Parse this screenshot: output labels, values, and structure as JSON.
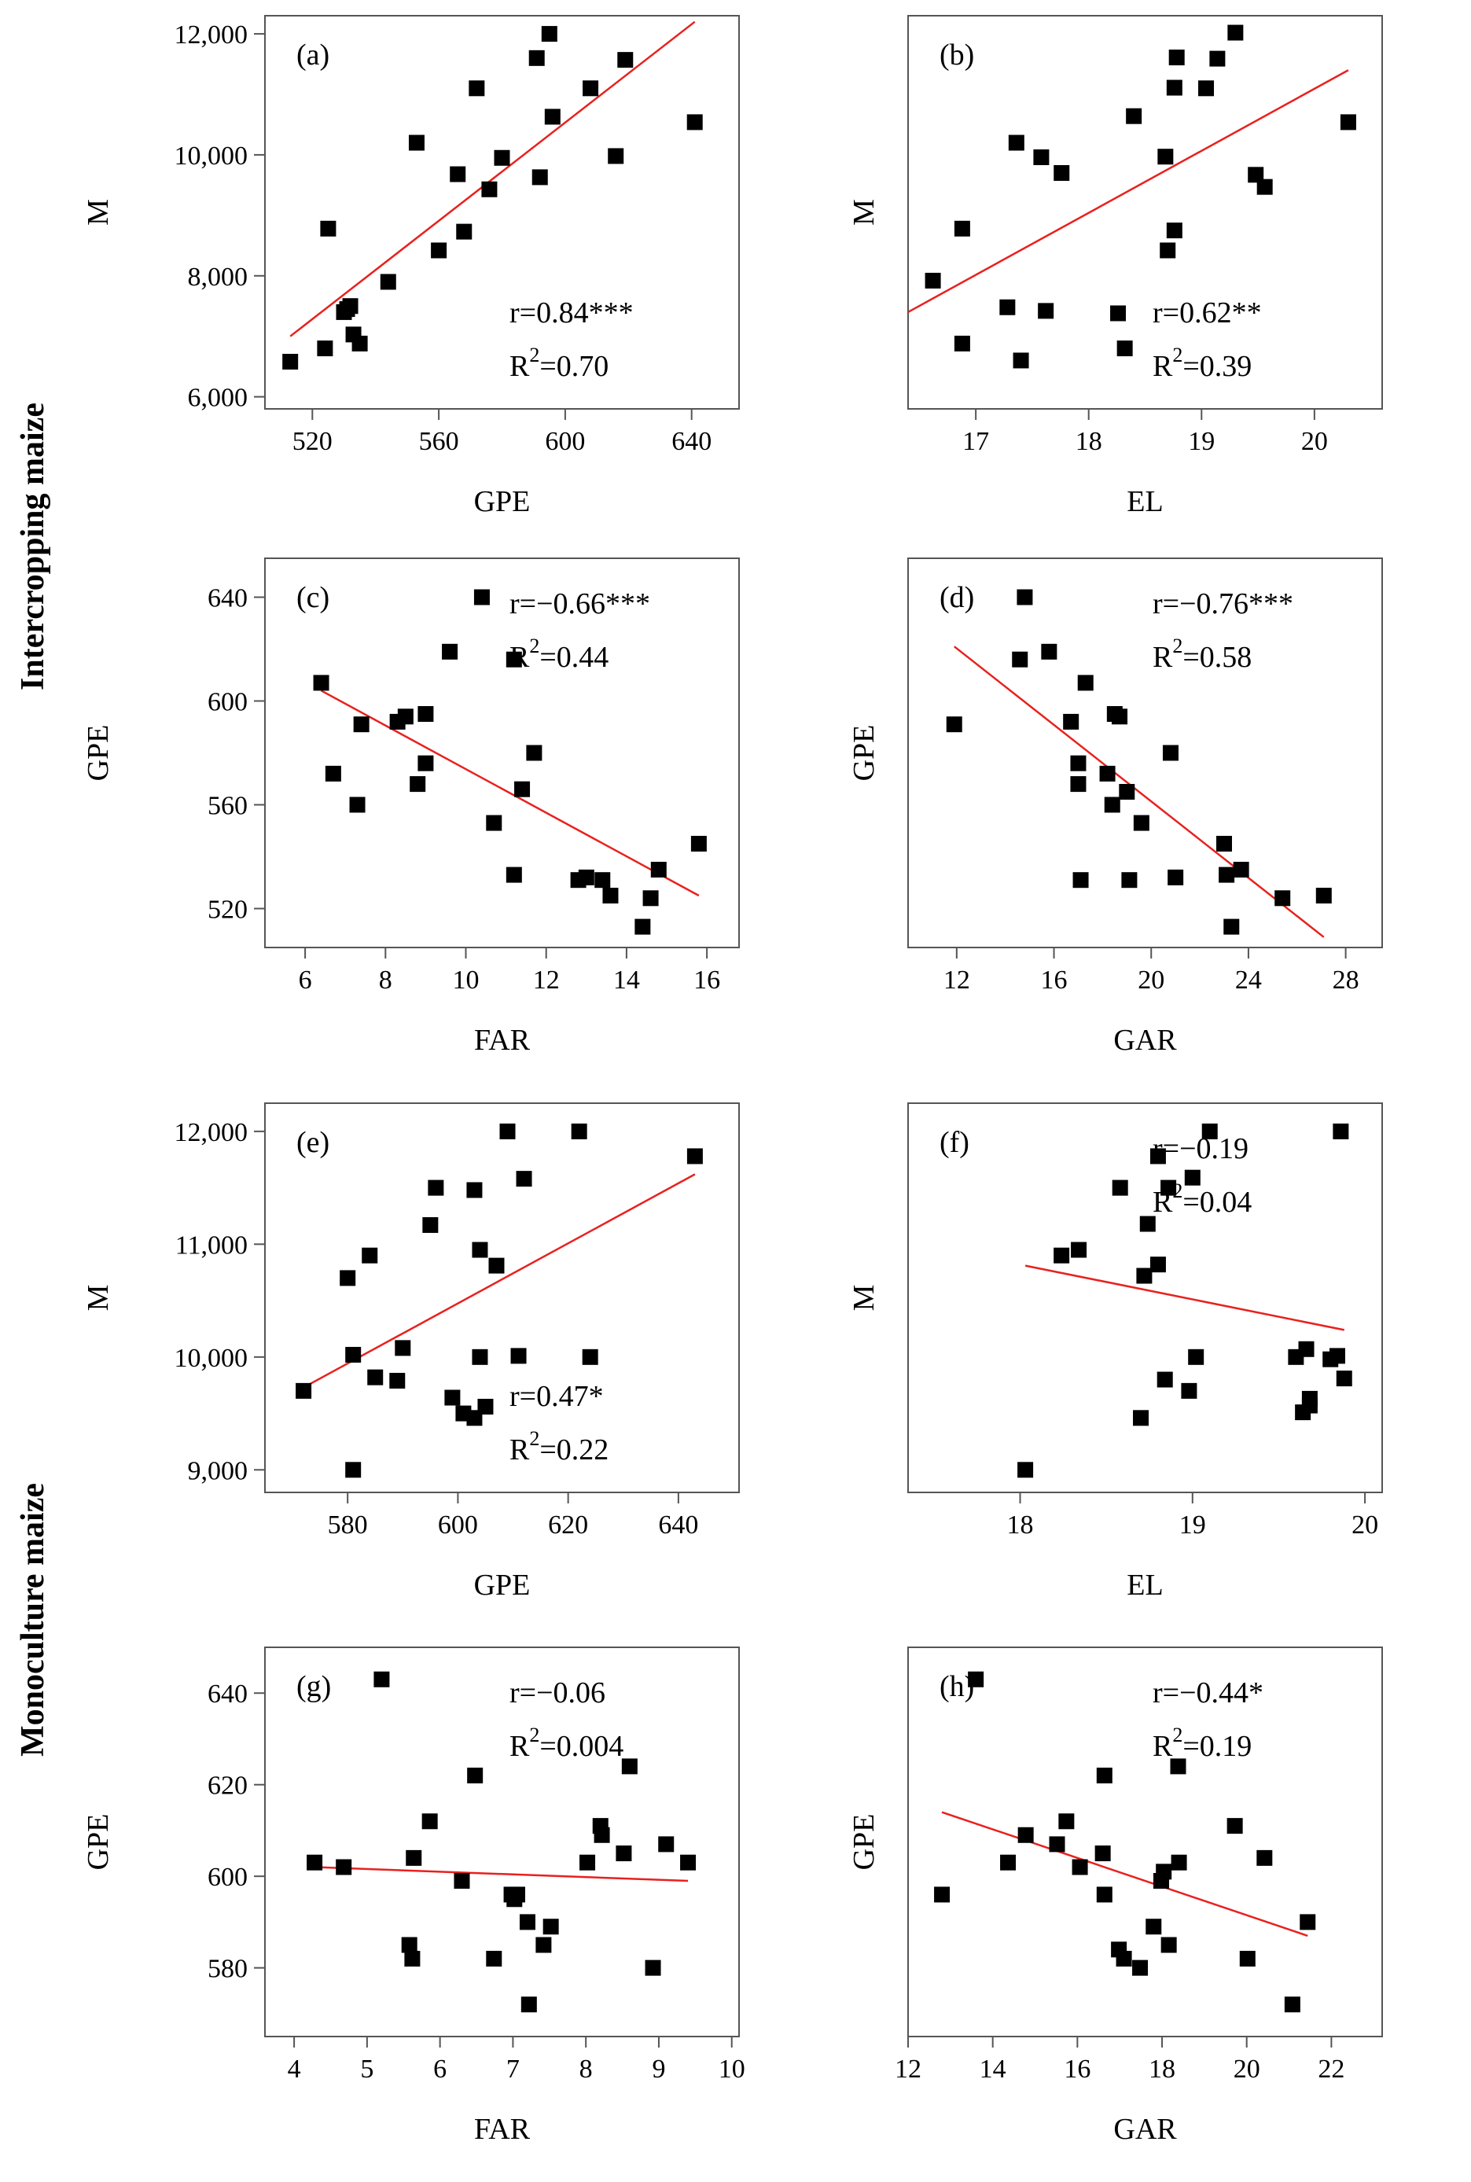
{
  "figure": {
    "row_groups": [
      {
        "label": "Intercropping maize"
      },
      {
        "label": "Monoculture maize"
      }
    ]
  },
  "chart_data": [
    {
      "panel": "(a)",
      "type": "scatter",
      "xlabel": "GPE",
      "ylabel": "M",
      "xlim": [
        505,
        655
      ],
      "ylim": [
        5800,
        12300
      ],
      "xticks": [
        520,
        560,
        600,
        640
      ],
      "xtick_labels": [
        "520",
        "560",
        "600",
        "640"
      ],
      "yticks": [
        6000,
        8000,
        10000,
        12000
      ],
      "ytick_labels": [
        "6,000",
        "8,000",
        "10,000",
        "12,000"
      ],
      "x": [
        513,
        524,
        525,
        530,
        531,
        532,
        533,
        535,
        544,
        553,
        560,
        566,
        568,
        572,
        576,
        580,
        591,
        592,
        595,
        596,
        608,
        616,
        619,
        641
      ],
      "y": [
        6580,
        6800,
        8780,
        7400,
        7450,
        7500,
        7030,
        6880,
        7900,
        10200,
        8420,
        9680,
        8730,
        11100,
        9430,
        9950,
        11600,
        9630,
        12000,
        10630,
        11100,
        9980,
        11570,
        10540
      ],
      "fit": {
        "x": [
          513,
          641
        ],
        "y": [
          7000,
          12200
        ]
      },
      "r_text": "r=0.84***",
      "r2_text": "R²=0.70",
      "annotation_position": "bottom-right"
    },
    {
      "panel": "(b)",
      "type": "scatter",
      "xlabel": "EL",
      "ylabel": "M",
      "xlim": [
        16.4,
        20.6
      ],
      "ylim": [
        5800,
        12300
      ],
      "xticks": [
        17,
        18,
        19,
        20
      ],
      "xtick_labels": [
        "17",
        "18",
        "19",
        "20"
      ],
      "yticks": [],
      "ytick_labels": [],
      "x": [
        16.62,
        16.88,
        16.88,
        17.28,
        17.36,
        17.4,
        17.58,
        17.62,
        17.76,
        18.26,
        18.32,
        18.4,
        18.68,
        18.7,
        18.76,
        18.76,
        18.78,
        19.04,
        19.14,
        19.3,
        19.48,
        19.56,
        20.3
      ],
      "y": [
        7920,
        8780,
        6880,
        7480,
        10200,
        6600,
        9960,
        7420,
        9700,
        7380,
        6800,
        10640,
        9970,
        8420,
        8750,
        11110,
        11610,
        11100,
        11590,
        12020,
        9670,
        9470,
        10540
      ],
      "fit": {
        "x": [
          16.4,
          20.3
        ],
        "y": [
          7400,
          11400
        ]
      },
      "r_text": "r=0.62**",
      "r2_text": "R²=0.39",
      "annotation_position": "bottom-right"
    },
    {
      "panel": "(c)",
      "type": "scatter",
      "xlabel": "FAR",
      "ylabel": "GPE",
      "xlim": [
        5,
        16.8
      ],
      "ylim": [
        505,
        655
      ],
      "xticks": [
        6,
        8,
        10,
        12,
        14,
        16
      ],
      "xtick_labels": [
        "6",
        "8",
        "10",
        "12",
        "14",
        "16"
      ],
      "yticks": [
        520,
        560,
        600,
        640
      ],
      "ytick_labels": [
        "520",
        "560",
        "600",
        "640"
      ],
      "x": [
        6.4,
        6.7,
        7.3,
        7.4,
        8.3,
        8.5,
        8.8,
        9.0,
        9.0,
        9.6,
        10.4,
        10.7,
        11.2,
        11.2,
        11.4,
        11.7,
        12.8,
        13.0,
        13.4,
        13.6,
        14.4,
        14.6,
        14.8,
        15.8
      ],
      "y": [
        607,
        572,
        560,
        591,
        592,
        594,
        568,
        595,
        576,
        619,
        640,
        553,
        616,
        533,
        566,
        580,
        531,
        532,
        531,
        525,
        513,
        524,
        535,
        545
      ],
      "fit": {
        "x": [
          6.4,
          15.8
        ],
        "y": [
          604,
          525
        ]
      },
      "r_text": "r=−0.66***",
      "r2_text": "R²=0.44",
      "annotation_position": "top-right"
    },
    {
      "panel": "(d)",
      "type": "scatter",
      "xlabel": "GAR",
      "ylabel": "GPE",
      "xlim": [
        10,
        29.5
      ],
      "ylim": [
        505,
        655
      ],
      "xticks": [
        12,
        16,
        20,
        24,
        28
      ],
      "xtick_labels": [
        "12",
        "16",
        "20",
        "24",
        "28"
      ],
      "yticks": [],
      "ytick_labels": [],
      "x": [
        11.9,
        14.6,
        14.8,
        15.8,
        16.7,
        17.0,
        17.0,
        17.1,
        17.3,
        18.2,
        18.4,
        18.5,
        18.7,
        19.0,
        19.1,
        19.6,
        20.8,
        21.0,
        23.0,
        23.1,
        23.3,
        23.7,
        25.4,
        27.1
      ],
      "y": [
        591,
        616,
        640,
        619,
        592,
        576,
        568,
        531,
        607,
        572,
        560,
        595,
        594,
        565,
        531,
        553,
        580,
        532,
        545,
        533,
        513,
        535,
        524,
        525
      ],
      "fit": {
        "x": [
          11.9,
          27.1
        ],
        "y": [
          621,
          509
        ]
      },
      "r_text": "r=−0.76***",
      "r2_text": "R²=0.58",
      "annotation_position": "top-right"
    },
    {
      "panel": "(e)",
      "type": "scatter",
      "xlabel": "GPE",
      "ylabel": "M",
      "xlim": [
        565,
        651
      ],
      "ylim": [
        8800,
        12250
      ],
      "xticks": [
        580,
        600,
        620,
        640
      ],
      "xtick_labels": [
        "580",
        "600",
        "620",
        "640"
      ],
      "yticks": [
        9000,
        10000,
        11000,
        12000
      ],
      "ytick_labels": [
        "9,000",
        "10,000",
        "11,000",
        "12,000"
      ],
      "x": [
        572,
        580,
        581,
        581,
        584,
        585,
        589,
        590,
        595,
        596,
        599,
        601,
        603,
        603,
        604,
        604,
        605,
        607,
        609,
        611,
        612,
        622,
        624,
        643
      ],
      "y": [
        9700,
        10700,
        10020,
        9000,
        10900,
        9820,
        9790,
        10080,
        11170,
        11500,
        9640,
        9500,
        11480,
        9460,
        10950,
        10000,
        9560,
        10810,
        12000,
        10010,
        11580,
        12000,
        10000,
        11780
      ],
      "fit": {
        "x": [
          572,
          643
        ],
        "y": [
          9730,
          11620
        ]
      },
      "r_text": "r=0.47*",
      "r2_text": "R²=0.22",
      "annotation_position": "bottom-right"
    },
    {
      "panel": "(f)",
      "type": "scatter",
      "xlabel": "EL",
      "ylabel": "M",
      "xlim": [
        17.35,
        20.1
      ],
      "ylim": [
        8800,
        12250
      ],
      "xticks": [
        18,
        19,
        20
      ],
      "xtick_labels": [
        "18",
        "19",
        "20"
      ],
      "yticks": [],
      "ytick_labels": [],
      "x": [
        18.03,
        18.24,
        18.34,
        18.58,
        18.7,
        18.72,
        18.74,
        18.8,
        18.8,
        18.84,
        18.86,
        18.98,
        19.0,
        19.02,
        19.1,
        19.6,
        19.64,
        19.66,
        19.68,
        19.68,
        19.8,
        19.84,
        19.86,
        19.88
      ],
      "y": [
        9000,
        10900,
        10950,
        11500,
        9460,
        10720,
        11180,
        10820,
        11780,
        9800,
        11500,
        9700,
        11590,
        10000,
        12000,
        10000,
        9510,
        10070,
        9570,
        9630,
        9980,
        10010,
        12000,
        9810
      ],
      "fit": {
        "x": [
          18.03,
          19.88
        ],
        "y": [
          10810,
          10240
        ]
      },
      "r_text": "r=−0.19",
      "r2_text": "R²=0.04",
      "annotation_position": "top-right"
    },
    {
      "panel": "(g)",
      "type": "scatter",
      "xlabel": "FAR",
      "ylabel": "GPE",
      "xlim": [
        3.6,
        10.1
      ],
      "ylim": [
        565,
        650
      ],
      "xticks": [
        4,
        5,
        6,
        7,
        8,
        9,
        10
      ],
      "xtick_labels": [
        "4",
        "5",
        "6",
        "7",
        "8",
        "9",
        "10"
      ],
      "yticks": [
        580,
        600,
        620,
        640
      ],
      "ytick_labels": [
        "580",
        "600",
        "620",
        "640"
      ],
      "x": [
        4.28,
        4.68,
        5.2,
        5.58,
        5.62,
        5.64,
        5.86,
        6.3,
        6.48,
        6.74,
        6.98,
        7.02,
        7.06,
        7.2,
        7.22,
        7.42,
        7.52,
        8.02,
        8.2,
        8.22,
        8.52,
        8.6,
        8.92,
        9.1,
        9.4
      ],
      "y": [
        603,
        602,
        643,
        585,
        582,
        604,
        612,
        599,
        622,
        582,
        596,
        595,
        596,
        590,
        572,
        585,
        589,
        603,
        611,
        609,
        605,
        624,
        580,
        607,
        603
      ],
      "fit": {
        "x": [
          4.28,
          9.4
        ],
        "y": [
          602,
          599
        ]
      },
      "r_text": "r=−0.06",
      "r2_text": "R²=0.004",
      "annotation_position": "top-right"
    },
    {
      "panel": "(h)",
      "type": "scatter",
      "xlabel": "GAR",
      "ylabel": "GPE",
      "xlim": [
        12,
        23.2
      ],
      "ylim": [
        565,
        650
      ],
      "xticks": [
        12,
        14,
        16,
        18,
        20,
        22
      ],
      "xtick_labels": [
        "12",
        "14",
        "16",
        "18",
        "20",
        "22"
      ],
      "yticks": [],
      "ytick_labels": [],
      "x": [
        12.8,
        13.6,
        14.36,
        14.78,
        15.52,
        15.74,
        16.06,
        16.6,
        16.64,
        16.64,
        16.98,
        17.1,
        17.48,
        17.8,
        17.98,
        18.04,
        18.16,
        18.38,
        18.4,
        19.72,
        20.02,
        20.42,
        21.08,
        21.44
      ],
      "y": [
        596,
        643,
        603,
        609,
        607,
        612,
        602,
        605,
        622,
        596,
        584,
        582,
        580,
        589,
        599,
        601,
        585,
        624,
        603,
        611,
        582,
        604,
        572,
        590
      ],
      "fit": {
        "x": [
          12.8,
          21.44
        ],
        "y": [
          614,
          587
        ]
      },
      "r_text": "r=−0.44*",
      "r2_text": "R²=0.19",
      "annotation_position": "top-right"
    }
  ]
}
